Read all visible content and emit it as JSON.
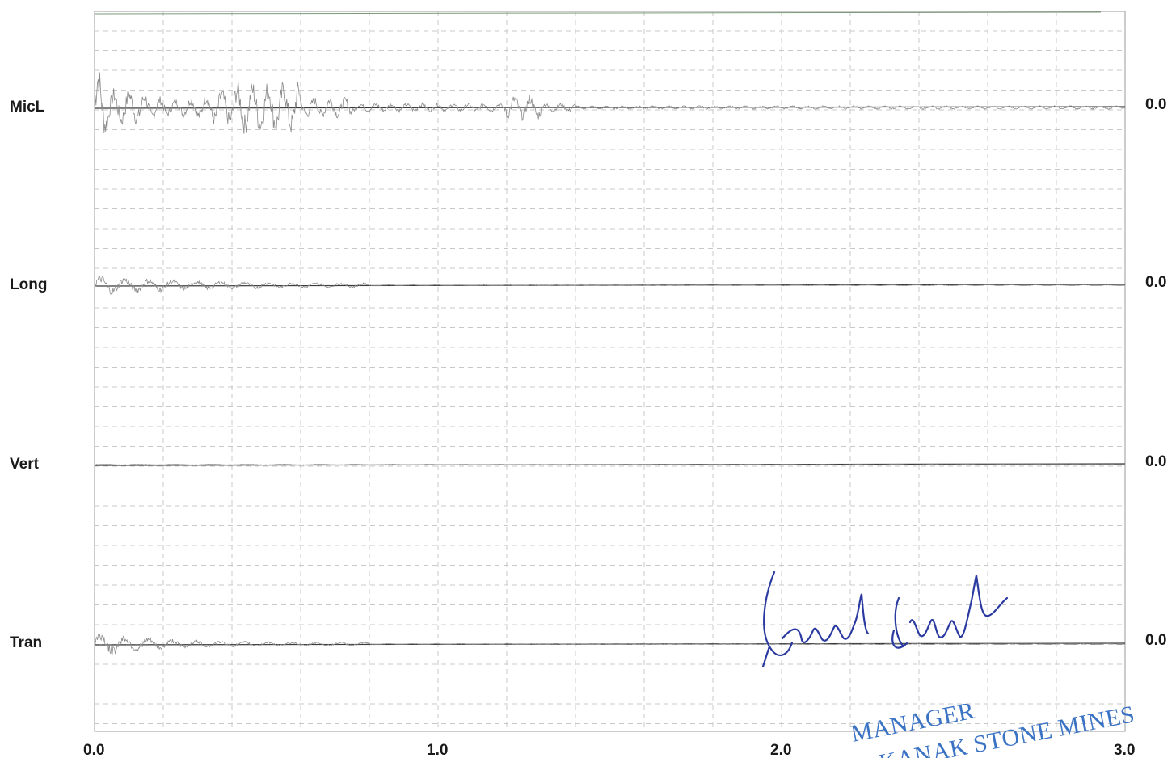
{
  "chart_data": {
    "type": "line",
    "xlim": [
      0.0,
      3.0
    ],
    "x_ticks": [
      "0.0",
      "1.0",
      "2.0",
      "3.0"
    ],
    "grid": true,
    "series": [
      {
        "name": "MicL",
        "scale_label": "0.0",
        "baseline": 0.0
      },
      {
        "name": "Long",
        "scale_label": "0.0",
        "baseline": 0.0
      },
      {
        "name": "Vert",
        "scale_label": "0.0",
        "baseline": 0.0
      },
      {
        "name": "Tran",
        "scale_label": "0.0",
        "baseline": 0.0
      }
    ]
  },
  "stamp": {
    "line1": "MANAGER",
    "line2": "KANAK STONE MINES"
  },
  "signature_text": "Prakash Chandra",
  "colors": {
    "grid": "#c8c8c8",
    "trace": "#8a8a8a",
    "baseline": "#3a3a3a",
    "stamp": "#3b73c4",
    "signature": "#2a3aa0"
  }
}
